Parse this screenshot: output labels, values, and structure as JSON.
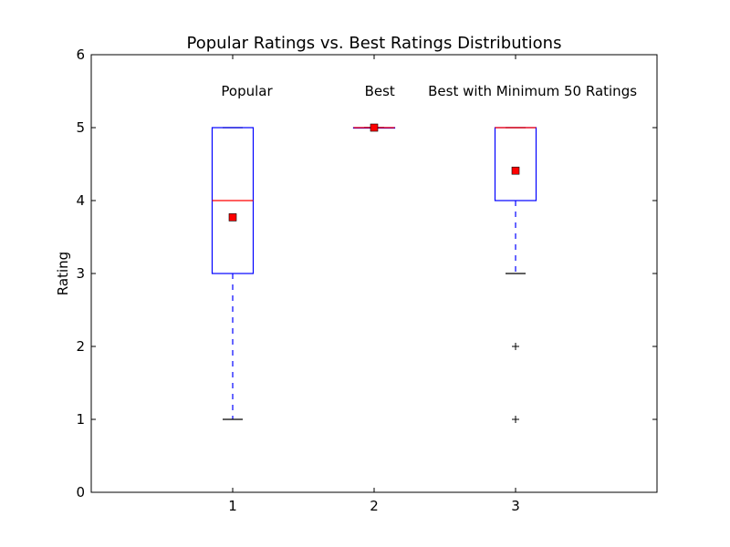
{
  "chart_data": {
    "type": "box",
    "title": "Popular Ratings vs. Best Ratings Distributions",
    "xlabel": "",
    "ylabel": "Rating",
    "xlim": [
      0,
      4
    ],
    "ylim": [
      0,
      6
    ],
    "x_ticks": [
      1,
      2,
      3
    ],
    "y_ticks": [
      0,
      1,
      2,
      3,
      4,
      5,
      6
    ],
    "grid": false,
    "annotations": [
      {
        "text": "Popular",
        "x": 1.1,
        "y": 5.5
      },
      {
        "text": "Best",
        "x": 2.04,
        "y": 5.5
      },
      {
        "text": "Best with Minimum 50 Ratings",
        "x": 3.12,
        "y": 5.5
      }
    ],
    "boxes": [
      {
        "x": 1,
        "whisker_low": 1,
        "q1": 3,
        "median": 4,
        "q3": 5,
        "whisker_high": 5,
        "mean": 3.77,
        "outliers": []
      },
      {
        "x": 2,
        "whisker_low": 5,
        "q1": 5,
        "median": 5,
        "q3": 5,
        "whisker_high": 5,
        "mean": 5.0,
        "outliers": []
      },
      {
        "x": 3,
        "whisker_low": 3,
        "q1": 4,
        "median": 5,
        "q3": 5,
        "whisker_high": 5,
        "mean": 4.41,
        "outliers": [
          2,
          1
        ]
      }
    ],
    "colors": {
      "box": "#0000ff",
      "median": "#ff0000",
      "mean_marker": "#ff0000",
      "caps": "#000000",
      "outlier": "#000000",
      "axes": "#000000"
    }
  }
}
